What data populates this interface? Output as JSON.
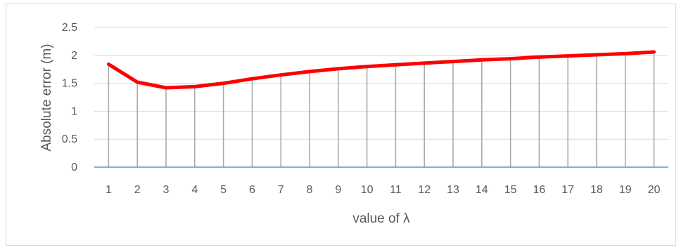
{
  "chart_data": {
    "type": "line",
    "title": "",
    "xlabel": "value of λ",
    "ylabel": "Absolute error (m)",
    "x": [
      1,
      2,
      3,
      4,
      5,
      6,
      7,
      8,
      9,
      10,
      11,
      12,
      13,
      14,
      15,
      16,
      17,
      18,
      19,
      20
    ],
    "series": [
      {
        "values": [
          1.84,
          1.52,
          1.42,
          1.44,
          1.5,
          1.58,
          1.65,
          1.71,
          1.76,
          1.8,
          1.83,
          1.86,
          1.89,
          1.92,
          1.94,
          1.97,
          1.99,
          2.01,
          2.03,
          2.06
        ],
        "color": "#ff0000"
      }
    ],
    "ylim": [
      0,
      2.5
    ],
    "yticks": [
      0,
      0.5,
      1,
      1.5,
      2,
      2.5
    ],
    "ytick_labels": [
      "0",
      "0.5",
      "1",
      "1.5",
      "2",
      "2.5"
    ],
    "grid": "horizontal",
    "drop_lines": true,
    "legend": "none",
    "colors": {
      "series": "#ff0000",
      "x_axis": "#4a9ccf",
      "gridline": "#d9d9d9",
      "drop_line": "#a6a6a6",
      "text": "#595959"
    }
  }
}
